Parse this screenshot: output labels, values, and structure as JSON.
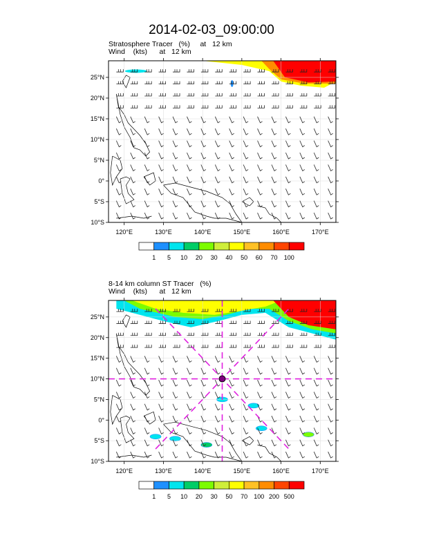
{
  "title": "2014-02-03_09:00:00",
  "chart_data": [
    {
      "type": "heatmap",
      "title_line1": "Stratosphere Tracer   (%)     at   12 km",
      "title_line2": "Wind    (kts)      at   12 km",
      "xlim": [
        116,
        174
      ],
      "ylim": [
        -10,
        29
      ],
      "x_ticks": [
        120,
        130,
        140,
        150,
        160,
        170
      ],
      "x_tick_labels": [
        "120°E",
        "130°E",
        "140°E",
        "150°E",
        "160°E",
        "170°E"
      ],
      "y_ticks": [
        -10,
        -5,
        0,
        5,
        10,
        15,
        20,
        25
      ],
      "y_tick_labels": [
        "10°S",
        "5°S",
        "0°",
        "5°N",
        "10°N",
        "15°N",
        "20°N",
        "25°N"
      ],
      "colorbar": {
        "labels": [
          "1",
          "5",
          "10",
          "20",
          "30",
          "40",
          "50",
          "60",
          "70",
          "100"
        ],
        "colors": [
          "#ffffff",
          "#1e90ff",
          "#00e5ee",
          "#00cd66",
          "#7cfc00",
          "#cfee3a",
          "#ffff00",
          "#ffc125",
          "#ff8c00",
          "#ff4500",
          "#ff0000"
        ]
      }
    },
    {
      "type": "heatmap",
      "title_line1": "8-14 km column ST Tracer   (%)",
      "title_line2": "Wind    (kts)      at   12 km",
      "xlim": [
        116,
        174
      ],
      "ylim": [
        -10,
        29
      ],
      "x_ticks": [
        120,
        130,
        140,
        150,
        160,
        170
      ],
      "x_tick_labels": [
        "120°E",
        "130°E",
        "140°E",
        "150°E",
        "160°E",
        "170°E"
      ],
      "y_ticks": [
        -10,
        -5,
        0,
        5,
        10,
        15,
        20,
        25
      ],
      "y_tick_labels": [
        "10°S",
        "5°S",
        "0°",
        "5°N",
        "10°N",
        "15°N",
        "20°N",
        "25°N"
      ],
      "colorbar": {
        "labels": [
          "1",
          "5",
          "10",
          "20",
          "30",
          "50",
          "70",
          "100",
          "200",
          "500"
        ],
        "colors": [
          "#ffffff",
          "#1e90ff",
          "#00e5ee",
          "#00cd66",
          "#7cfc00",
          "#cfee3a",
          "#ffff00",
          "#ffc125",
          "#ff8c00",
          "#ff4500",
          "#ff0000"
        ]
      },
      "crosshair_center": [
        145,
        10
      ]
    }
  ]
}
